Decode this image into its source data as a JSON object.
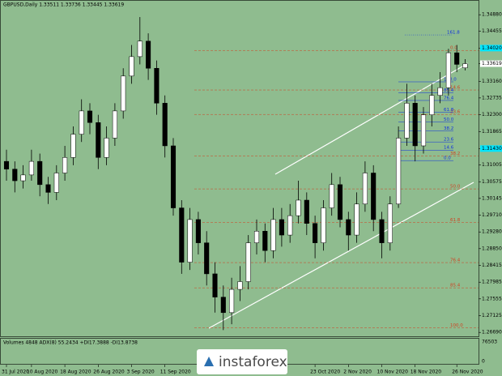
{
  "chart_data": {
    "type": "candlestick",
    "title": "GBPUSD,Daily  1.33511 1.33736 1.33445 1.33619",
    "indicator_title": "Volumes 4848  ADX(8) 55.2434 +DI17.3888 -DI13.8738",
    "indicator_ticks": [
      76503,
      0
    ],
    "logo": "instaforex",
    "up_color": "#ffffff",
    "down_color": "#000000",
    "categories": [
      "31 Jul 2020",
      null,
      null,
      "10 Aug 2020",
      null,
      null,
      null,
      "18 Aug 2020",
      null,
      null,
      null,
      "26 Aug 2020",
      null,
      null,
      null,
      "3 Sep 2020",
      null,
      null,
      null,
      "11 Sep 2020",
      null,
      null,
      null,
      null,
      null,
      null,
      null,
      null,
      null,
      null,
      null,
      null,
      null,
      null,
      null,
      null,
      null,
      "23 Oct 2020",
      null,
      null,
      null,
      "2 Nov 2020",
      null,
      null,
      null,
      "10 Nov 2020",
      null,
      null,
      null,
      "18 Nov 2020",
      null,
      null,
      null,
      null,
      "26 Nov 2020",
      null
    ],
    "open": [
      1.311,
      1.309,
      1.306,
      1.3075,
      1.311,
      1.305,
      1.303,
      1.308,
      1.312,
      1.318,
      1.324,
      1.321,
      1.312,
      1.317,
      1.324,
      1.333,
      1.338,
      1.342,
      1.335,
      1.326,
      1.315,
      1.299,
      1.285,
      1.296,
      1.29,
      1.282,
      1.276,
      1.272,
      1.278,
      1.28,
      1.29,
      1.293,
      1.288,
      1.296,
      1.292,
      1.297,
      1.301,
      1.295,
      1.29,
      1.299,
      1.305,
      1.296,
      1.292,
      1.3,
      1.308,
      1.296,
      1.29,
      1.3,
      1.317,
      1.326,
      1.315,
      1.323,
      1.328,
      1.33,
      1.339,
      1.33511
    ],
    "high": [
      1.314,
      1.311,
      1.31,
      1.314,
      1.313,
      1.307,
      1.31,
      1.315,
      1.32,
      1.327,
      1.326,
      1.323,
      1.32,
      1.326,
      1.335,
      1.341,
      1.3482,
      1.344,
      1.337,
      1.328,
      1.317,
      1.301,
      1.299,
      1.298,
      1.293,
      1.285,
      1.279,
      1.281,
      1.284,
      1.292,
      1.296,
      1.295,
      1.299,
      1.299,
      1.3,
      1.306,
      1.303,
      1.297,
      1.301,
      1.308,
      1.307,
      1.298,
      1.303,
      1.311,
      1.31,
      1.298,
      1.302,
      1.32,
      1.331,
      1.328,
      1.325,
      1.331,
      1.334,
      1.34,
      1.341,
      1.33736
    ],
    "low": [
      1.306,
      1.303,
      1.304,
      1.306,
      1.302,
      1.3,
      1.301,
      1.306,
      1.31,
      1.316,
      1.318,
      1.309,
      1.31,
      1.315,
      1.322,
      1.331,
      1.336,
      1.332,
      1.323,
      1.312,
      1.297,
      1.282,
      1.283,
      1.287,
      1.279,
      1.272,
      1.2675,
      1.269,
      1.275,
      1.278,
      1.287,
      1.285,
      1.286,
      1.289,
      1.29,
      1.295,
      1.292,
      1.286,
      1.288,
      1.297,
      1.294,
      1.288,
      1.29,
      1.298,
      1.293,
      1.286,
      1.288,
      1.299,
      1.315,
      1.311,
      1.313,
      1.32,
      1.326,
      1.328,
      1.334,
      1.33445
    ],
    "close": [
      1.309,
      1.306,
      1.3075,
      1.311,
      1.305,
      1.303,
      1.308,
      1.312,
      1.318,
      1.324,
      1.321,
      1.312,
      1.317,
      1.324,
      1.333,
      1.338,
      1.342,
      1.335,
      1.326,
      1.315,
      1.299,
      1.285,
      1.296,
      1.29,
      1.282,
      1.276,
      1.272,
      1.278,
      1.28,
      1.29,
      1.293,
      1.288,
      1.296,
      1.292,
      1.297,
      1.301,
      1.295,
      1.29,
      1.299,
      1.305,
      1.296,
      1.292,
      1.3,
      1.308,
      1.296,
      1.29,
      1.3,
      1.317,
      1.326,
      1.315,
      1.323,
      1.328,
      1.33,
      1.339,
      1.336,
      1.33619
    ],
    "ylim": [
      1.2659,
      1.3526
    ],
    "yticks": [
      {
        "value": 1.3488,
        "label": "1.34880"
      },
      {
        "value": 1.34455,
        "label": "1.34455"
      },
      {
        "value": 1.3402,
        "label": "1.34020",
        "color": "#00e5ff"
      },
      {
        "value": 1.33619,
        "label": "1.33619",
        "color": "#ffffff"
      },
      {
        "value": 1.3316,
        "label": "1.33160"
      },
      {
        "value": 1.32735,
        "label": "1.32735"
      },
      {
        "value": 1.323,
        "label": "1.32300"
      },
      {
        "value": 1.31865,
        "label": "1.31865"
      },
      {
        "value": 1.3143,
        "label": "1.31430",
        "color": "#00e5ff"
      },
      {
        "value": 1.31005,
        "label": "1.31005"
      },
      {
        "value": 1.30575,
        "label": "1.30575"
      },
      {
        "value": 1.30145,
        "label": "1.30145"
      },
      {
        "value": 1.2971,
        "label": "1.29710"
      },
      {
        "value": 1.2928,
        "label": "1.29280"
      },
      {
        "value": 1.2885,
        "label": "1.28850"
      },
      {
        "value": 1.28415,
        "label": "1.28415"
      },
      {
        "value": 1.27985,
        "label": "1.27985"
      },
      {
        "value": 1.27555,
        "label": "1.27555"
      },
      {
        "value": 1.27125,
        "label": "1.27125"
      },
      {
        "value": 1.2669,
        "label": "1.26690"
      }
    ],
    "fib_main": {
      "color": "#d04020",
      "levels": [
        {
          "label": "0.0",
          "value": 1.3396
        },
        {
          "label": "14.6",
          "value": 1.3294
        },
        {
          "label": "23.6",
          "value": 1.3231
        },
        {
          "label": "38.2",
          "value": 1.3124
        },
        {
          "label": "50.0",
          "value": 1.3039
        },
        {
          "label": "61.8",
          "value": 1.2953
        },
        {
          "label": "76.4",
          "value": 1.2849
        },
        {
          "label": "85.4",
          "value": 1.2784
        },
        {
          "label": "100.0",
          "value": 1.2681
        }
      ]
    },
    "fib_ext": {
      "color": "#1030e0",
      "levels": [
        {
          "label": "161.8",
          "value": 1.3436
        }
      ]
    },
    "fib_small": {
      "color": "#1030e0",
      "levels": [
        {
          "label": "100.0",
          "value": 1.3315
        },
        {
          "label": "85.4",
          "value": 1.3287
        },
        {
          "label": "76.4",
          "value": 1.3267
        },
        {
          "label": "61.8",
          "value": 1.3237
        },
        {
          "label": "50.0",
          "value": 1.3212
        },
        {
          "label": "38.2",
          "value": 1.3189
        },
        {
          "label": "23.6",
          "value": 1.316
        },
        {
          "label": "14.6",
          "value": 1.3139
        },
        {
          "label": "0.0",
          "value": 1.3112
        }
      ]
    }
  }
}
